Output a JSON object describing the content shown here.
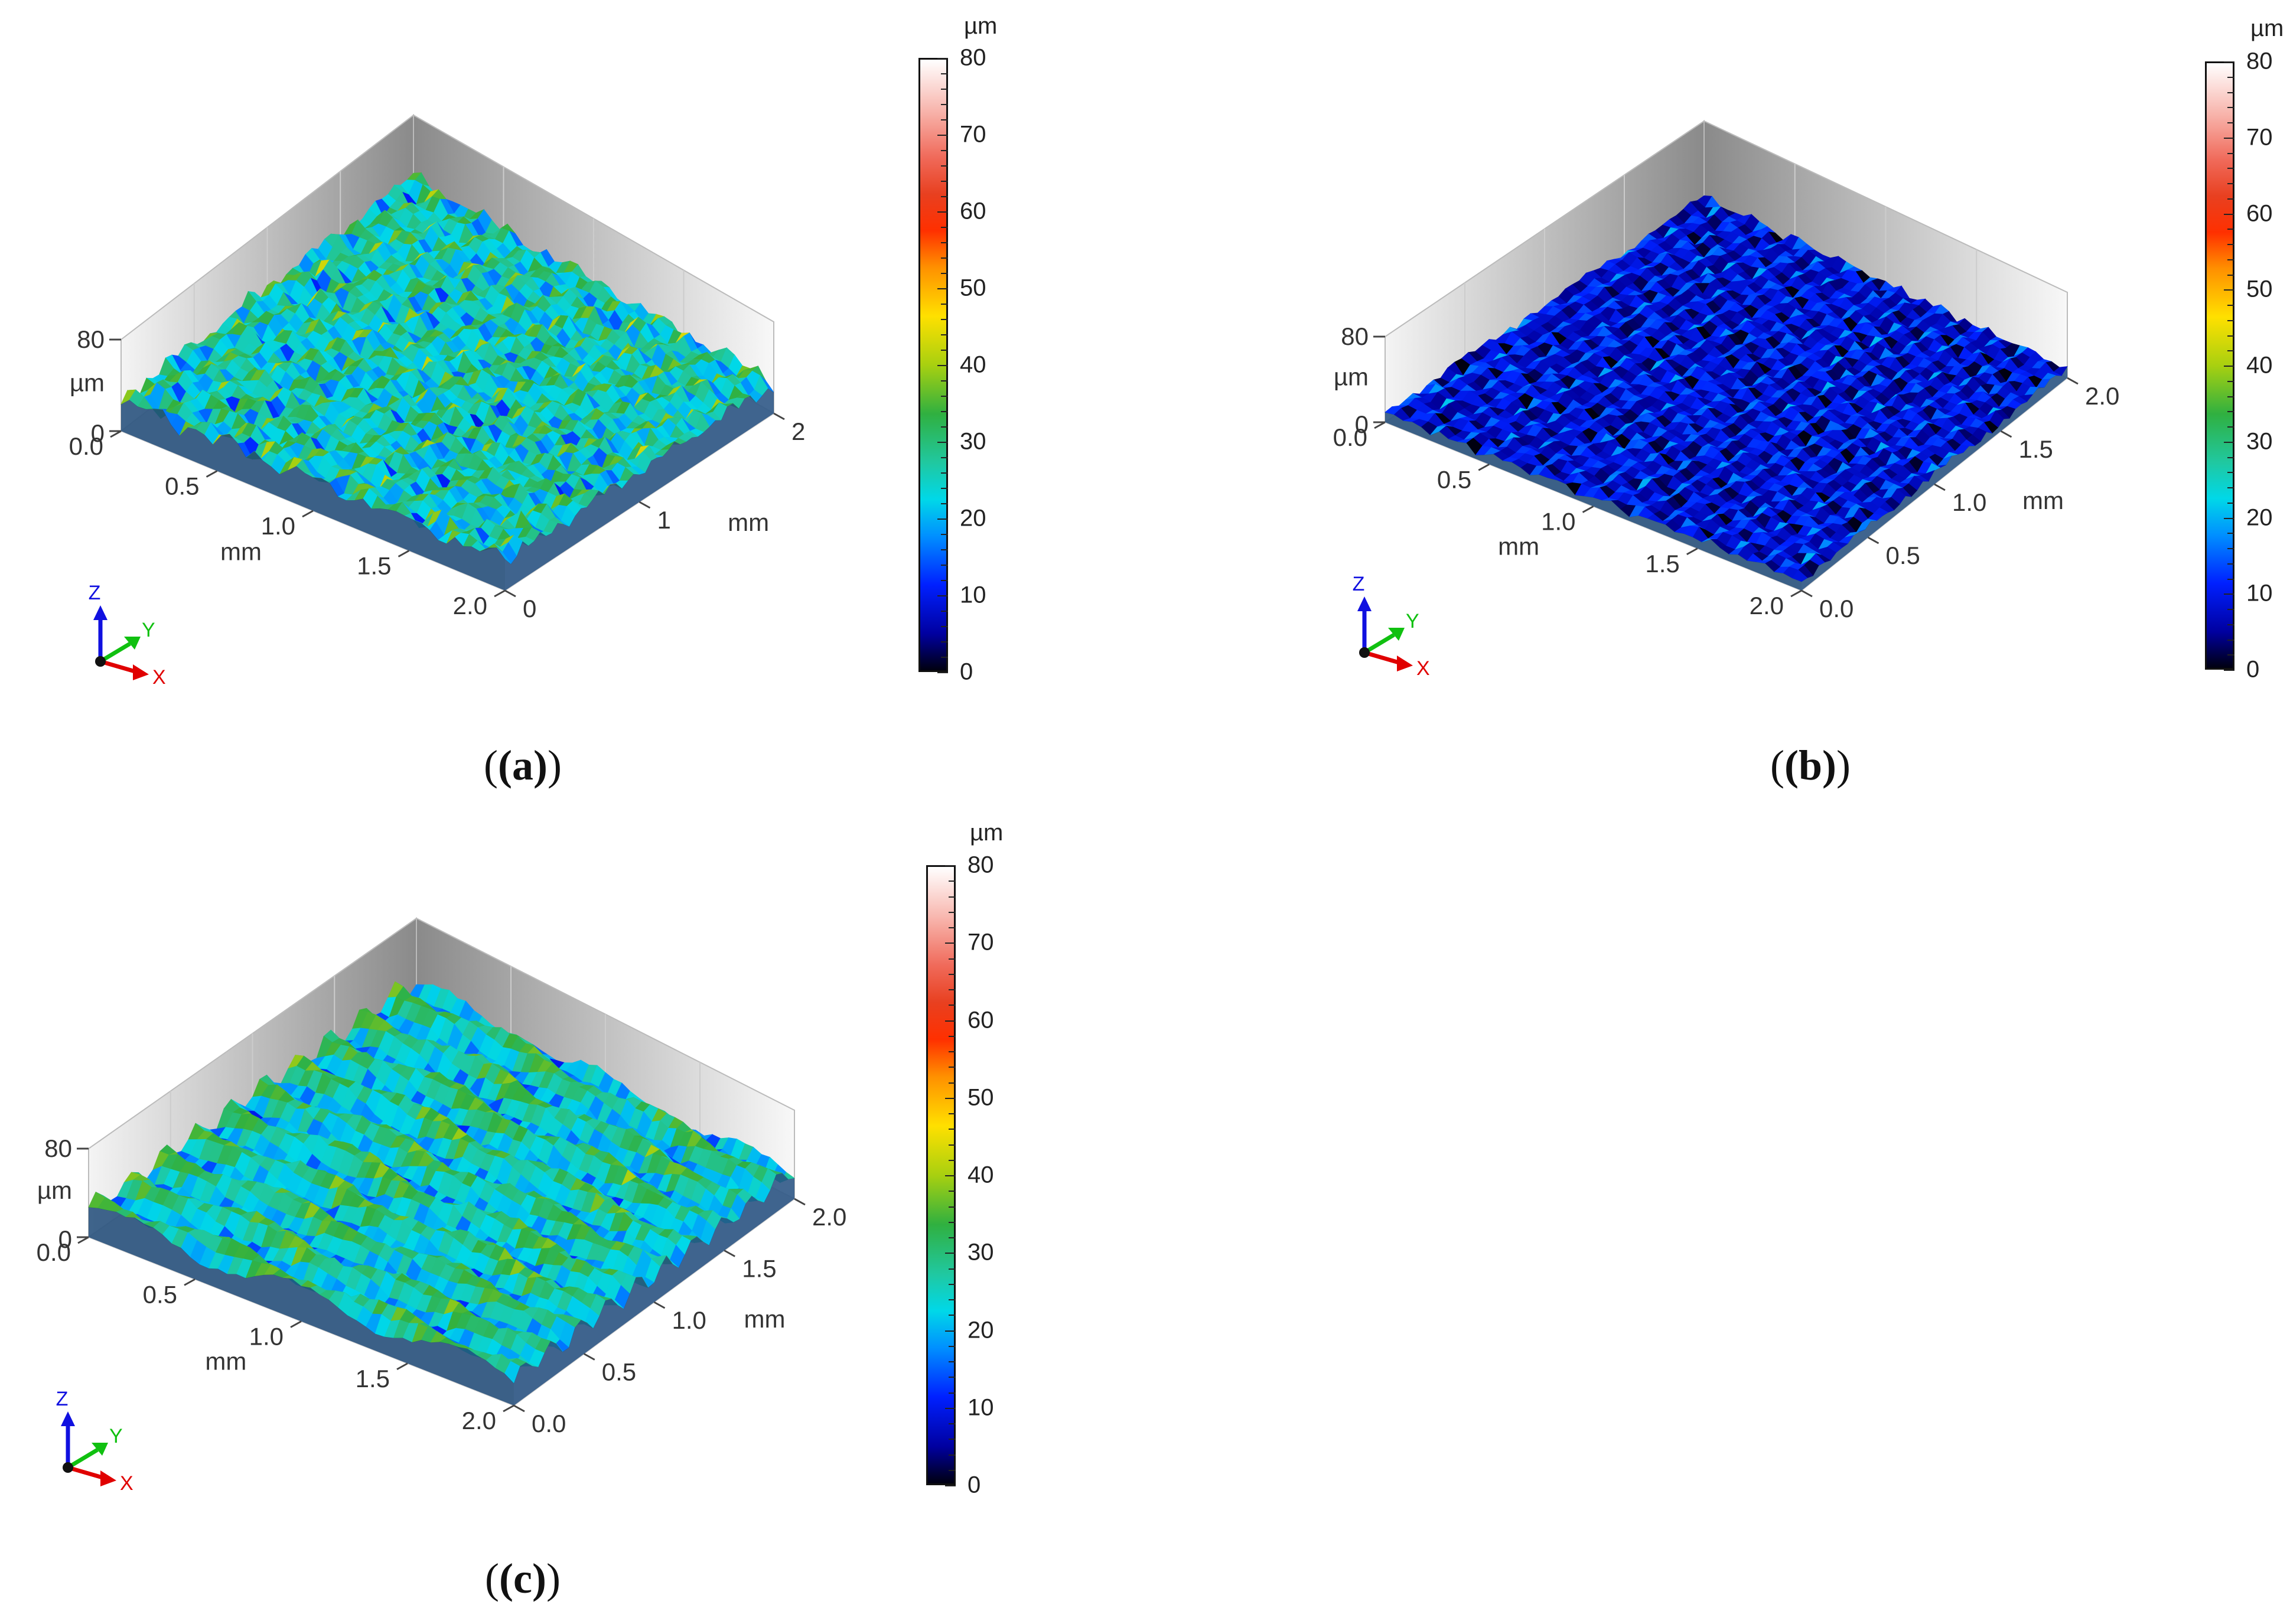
{
  "chart_data": [
    {
      "type": "surface",
      "panel_label": "(a)",
      "colormap_unit": "µm",
      "colorbar_ticks": [
        "0",
        "10",
        "20",
        "30",
        "40",
        "50",
        "60",
        "70",
        "80"
      ],
      "z_range": [
        0,
        80
      ],
      "z_ticks": [
        "0",
        "80"
      ],
      "z_unit": "µm",
      "x_ticks": [
        "0.0",
        "0.5",
        "1.0",
        "1.5",
        "2.0"
      ],
      "x_label": "mm",
      "y_ticks": [
        "0",
        "1",
        "2"
      ],
      "y_label": "mm",
      "surface_mean_height": 27,
      "surface_texture": "isotropic",
      "triad": {
        "z": "Z",
        "y": "Y",
        "x": "X"
      }
    },
    {
      "type": "surface",
      "panel_label": "(b)",
      "colormap_unit": "µm",
      "colorbar_ticks": [
        "0",
        "10",
        "20",
        "30",
        "40",
        "50",
        "60",
        "70",
        "80"
      ],
      "z_range": [
        0,
        80
      ],
      "z_ticks": [
        "0",
        "80"
      ],
      "z_unit": "µm",
      "x_ticks": [
        "0.0",
        "0.5",
        "1.0",
        "1.5",
        "2.0"
      ],
      "x_label": "mm",
      "y_ticks": [
        "0.0",
        "0.5",
        "1.0",
        "1.5",
        "2.0"
      ],
      "y_label": "mm",
      "surface_mean_height": 9,
      "surface_texture": "fine-isotropic",
      "triad": {
        "z": "Z",
        "y": "Y",
        "x": "X"
      }
    },
    {
      "type": "surface",
      "panel_label": "(c)",
      "colormap_unit": "µm",
      "colorbar_ticks": [
        "0",
        "10",
        "20",
        "30",
        "40",
        "50",
        "60",
        "70",
        "80"
      ],
      "z_range": [
        0,
        80
      ],
      "z_ticks": [
        "0",
        "80"
      ],
      "z_unit": "µm",
      "x_ticks": [
        "0.0",
        "0.5",
        "1.0",
        "1.5",
        "2.0"
      ],
      "x_label": "mm",
      "y_ticks": [
        "0.0",
        "0.5",
        "1.0",
        "1.5",
        "2.0"
      ],
      "y_label": "mm",
      "surface_mean_height": 25,
      "surface_texture": "ridged-along-x",
      "triad": {
        "z": "Z",
        "y": "Y",
        "x": "X"
      }
    }
  ],
  "colors": {
    "colormap": [
      "#000010",
      "#0000a0",
      "#0020ff",
      "#0090ff",
      "#00d8e8",
      "#30b040",
      "#ffe000",
      "#ff9000",
      "#ff3000",
      "#ffffff"
    ],
    "axis_x": "#e00000",
    "axis_y": "#10c010",
    "axis_z": "#1010e0"
  }
}
